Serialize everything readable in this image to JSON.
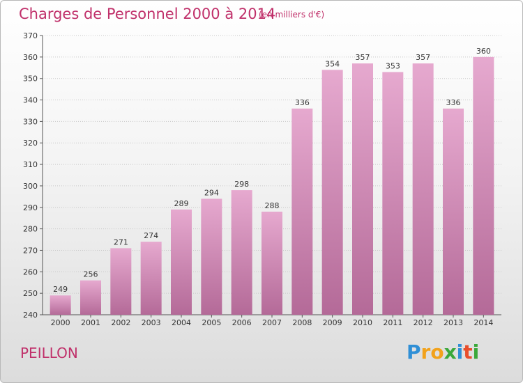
{
  "chart_data": {
    "type": "bar",
    "title": "Charges de Personnel 2000 à 2014",
    "subtitle": "(en milliers d'€)",
    "categories": [
      "2000",
      "2001",
      "2002",
      "2003",
      "2004",
      "2005",
      "2006",
      "2007",
      "2008",
      "2009",
      "2010",
      "2011",
      "2012",
      "2013",
      "2014"
    ],
    "values": [
      249,
      256,
      271,
      274,
      289,
      294,
      298,
      288,
      336,
      354,
      357,
      353,
      357,
      336,
      360
    ],
    "ylim": [
      240,
      370
    ],
    "yticks": [
      240,
      250,
      260,
      270,
      280,
      290,
      300,
      310,
      320,
      330,
      340,
      350,
      360,
      370
    ],
    "grid": true,
    "bar_color_top": "#e6a9cf",
    "bar_color_bottom": "#b46a98"
  },
  "commune": "PEILLON",
  "brand": {
    "name": "Proxiti",
    "letters": [
      "P",
      "r",
      "o",
      "x",
      "i",
      "t",
      "i"
    ],
    "colors": [
      "#2f8fd6",
      "#f2a21b",
      "#f2a21b",
      "#3aa83a",
      "#2f8fd6",
      "#e84e2c",
      "#3aa83a"
    ]
  }
}
